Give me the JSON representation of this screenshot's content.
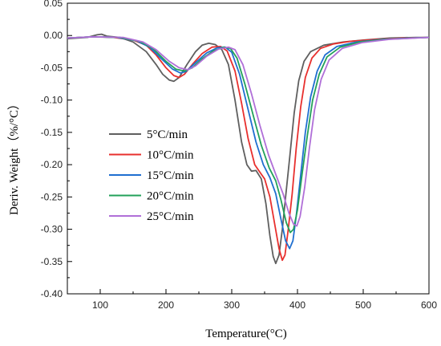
{
  "chart_data": {
    "type": "line",
    "xlabel": "Temperature(°C)",
    "ylabel": "Deriv. Weight（%/°C）",
    "xlim": [
      50,
      600
    ],
    "ylim": [
      -0.4,
      0.05
    ],
    "x_ticks": [
      100,
      200,
      300,
      400,
      500,
      600
    ],
    "x_tick_labels": [
      "100",
      "200",
      "300",
      "400",
      "500",
      "600"
    ],
    "y_ticks": [
      0.05,
      0.0,
      -0.05,
      -0.1,
      -0.15,
      -0.2,
      -0.25,
      -0.3,
      -0.35,
      -0.4
    ],
    "y_tick_labels": [
      "0.05",
      "0.00",
      "-0.05",
      "-0.10",
      "-0.15",
      "-0.20",
      "-0.25",
      "-0.30",
      "-0.35",
      "-0.40"
    ],
    "grid": false,
    "legend_position": "center-left",
    "series": [
      {
        "name": "5°C/min",
        "color": "#5f5f5f",
        "points": [
          [
            50,
            -0.005
          ],
          [
            80,
            -0.003
          ],
          [
            95,
            0.001
          ],
          [
            102,
            0.002
          ],
          [
            110,
            -0.001
          ],
          [
            130,
            -0.003
          ],
          [
            150,
            -0.01
          ],
          [
            170,
            -0.025
          ],
          [
            185,
            -0.045
          ],
          [
            195,
            -0.06
          ],
          [
            205,
            -0.069
          ],
          [
            212,
            -0.071
          ],
          [
            220,
            -0.065
          ],
          [
            232,
            -0.045
          ],
          [
            245,
            -0.025
          ],
          [
            255,
            -0.015
          ],
          [
            265,
            -0.012
          ],
          [
            275,
            -0.014
          ],
          [
            285,
            -0.022
          ],
          [
            295,
            -0.045
          ],
          [
            305,
            -0.1
          ],
          [
            315,
            -0.165
          ],
          [
            323,
            -0.2
          ],
          [
            330,
            -0.21
          ],
          [
            337,
            -0.209
          ],
          [
            345,
            -0.222
          ],
          [
            352,
            -0.26
          ],
          [
            358,
            -0.31
          ],
          [
            363,
            -0.342
          ],
          [
            367,
            -0.353
          ],
          [
            372,
            -0.34
          ],
          [
            377,
            -0.3
          ],
          [
            382,
            -0.25
          ],
          [
            388,
            -0.19
          ],
          [
            395,
            -0.12
          ],
          [
            402,
            -0.07
          ],
          [
            410,
            -0.04
          ],
          [
            420,
            -0.025
          ],
          [
            440,
            -0.015
          ],
          [
            470,
            -0.01
          ],
          [
            500,
            -0.007
          ],
          [
            540,
            -0.004
          ],
          [
            580,
            -0.003
          ],
          [
            600,
            -0.003
          ]
        ]
      },
      {
        "name": "10°C/min",
        "color": "#e8302e",
        "points": [
          [
            50,
            -0.004
          ],
          [
            90,
            -0.002
          ],
          [
            120,
            -0.003
          ],
          [
            150,
            -0.007
          ],
          [
            170,
            -0.015
          ],
          [
            185,
            -0.03
          ],
          [
            200,
            -0.05
          ],
          [
            212,
            -0.062
          ],
          [
            220,
            -0.065
          ],
          [
            228,
            -0.06
          ],
          [
            240,
            -0.045
          ],
          [
            255,
            -0.028
          ],
          [
            270,
            -0.018
          ],
          [
            283,
            -0.017
          ],
          [
            293,
            -0.024
          ],
          [
            305,
            -0.055
          ],
          [
            315,
            -0.105
          ],
          [
            325,
            -0.16
          ],
          [
            335,
            -0.2
          ],
          [
            343,
            -0.212
          ],
          [
            350,
            -0.222
          ],
          [
            358,
            -0.25
          ],
          [
            365,
            -0.29
          ],
          [
            372,
            -0.33
          ],
          [
            377,
            -0.348
          ],
          [
            381,
            -0.34
          ],
          [
            386,
            -0.3
          ],
          [
            392,
            -0.245
          ],
          [
            398,
            -0.175
          ],
          [
            405,
            -0.11
          ],
          [
            412,
            -0.065
          ],
          [
            422,
            -0.035
          ],
          [
            435,
            -0.02
          ],
          [
            455,
            -0.013
          ],
          [
            480,
            -0.009
          ],
          [
            520,
            -0.006
          ],
          [
            560,
            -0.004
          ],
          [
            600,
            -0.003
          ]
        ]
      },
      {
        "name": "15°C/min",
        "color": "#1f6fd0",
        "points": [
          [
            50,
            -0.004
          ],
          [
            90,
            -0.002
          ],
          [
            125,
            -0.003
          ],
          [
            155,
            -0.008
          ],
          [
            175,
            -0.018
          ],
          [
            192,
            -0.035
          ],
          [
            210,
            -0.052
          ],
          [
            222,
            -0.058
          ],
          [
            230,
            -0.056
          ],
          [
            245,
            -0.042
          ],
          [
            262,
            -0.027
          ],
          [
            278,
            -0.019
          ],
          [
            290,
            -0.018
          ],
          [
            300,
            -0.026
          ],
          [
            312,
            -0.06
          ],
          [
            325,
            -0.115
          ],
          [
            337,
            -0.165
          ],
          [
            348,
            -0.2
          ],
          [
            358,
            -0.22
          ],
          [
            367,
            -0.245
          ],
          [
            375,
            -0.285
          ],
          [
            382,
            -0.318
          ],
          [
            388,
            -0.33
          ],
          [
            393,
            -0.318
          ],
          [
            398,
            -0.28
          ],
          [
            405,
            -0.215
          ],
          [
            412,
            -0.15
          ],
          [
            420,
            -0.095
          ],
          [
            430,
            -0.055
          ],
          [
            442,
            -0.03
          ],
          [
            460,
            -0.017
          ],
          [
            490,
            -0.01
          ],
          [
            530,
            -0.006
          ],
          [
            570,
            -0.004
          ],
          [
            600,
            -0.003
          ]
        ]
      },
      {
        "name": "20°C/min",
        "color": "#22a15a",
        "points": [
          [
            50,
            -0.004
          ],
          [
            90,
            -0.002
          ],
          [
            130,
            -0.003
          ],
          [
            160,
            -0.009
          ],
          [
            180,
            -0.02
          ],
          [
            200,
            -0.04
          ],
          [
            215,
            -0.052
          ],
          [
            228,
            -0.055
          ],
          [
            240,
            -0.05
          ],
          [
            255,
            -0.036
          ],
          [
            272,
            -0.024
          ],
          [
            288,
            -0.018
          ],
          [
            298,
            -0.02
          ],
          [
            308,
            -0.035
          ],
          [
            320,
            -0.075
          ],
          [
            333,
            -0.125
          ],
          [
            345,
            -0.17
          ],
          [
            357,
            -0.205
          ],
          [
            367,
            -0.225
          ],
          [
            375,
            -0.255
          ],
          [
            383,
            -0.29
          ],
          [
            389,
            -0.305
          ],
          [
            394,
            -0.3
          ],
          [
            400,
            -0.27
          ],
          [
            407,
            -0.215
          ],
          [
            415,
            -0.155
          ],
          [
            423,
            -0.1
          ],
          [
            433,
            -0.06
          ],
          [
            445,
            -0.033
          ],
          [
            465,
            -0.018
          ],
          [
            495,
            -0.01
          ],
          [
            535,
            -0.006
          ],
          [
            575,
            -0.004
          ],
          [
            600,
            -0.003
          ]
        ]
      },
      {
        "name": "25°C/min",
        "color": "#b06fd8",
        "points": [
          [
            50,
            -0.004
          ],
          [
            90,
            -0.002
          ],
          [
            135,
            -0.003
          ],
          [
            165,
            -0.01
          ],
          [
            185,
            -0.022
          ],
          [
            205,
            -0.04
          ],
          [
            220,
            -0.05
          ],
          [
            233,
            -0.053
          ],
          [
            245,
            -0.047
          ],
          [
            262,
            -0.032
          ],
          [
            280,
            -0.021
          ],
          [
            295,
            -0.018
          ],
          [
            305,
            -0.022
          ],
          [
            317,
            -0.045
          ],
          [
            330,
            -0.09
          ],
          [
            343,
            -0.14
          ],
          [
            356,
            -0.185
          ],
          [
            368,
            -0.218
          ],
          [
            378,
            -0.245
          ],
          [
            387,
            -0.275
          ],
          [
            394,
            -0.292
          ],
          [
            399,
            -0.295
          ],
          [
            404,
            -0.28
          ],
          [
            411,
            -0.235
          ],
          [
            418,
            -0.175
          ],
          [
            426,
            -0.115
          ],
          [
            436,
            -0.068
          ],
          [
            448,
            -0.038
          ],
          [
            468,
            -0.02
          ],
          [
            498,
            -0.011
          ],
          [
            540,
            -0.006
          ],
          [
            580,
            -0.004
          ],
          [
            600,
            -0.003
          ]
        ]
      }
    ]
  }
}
